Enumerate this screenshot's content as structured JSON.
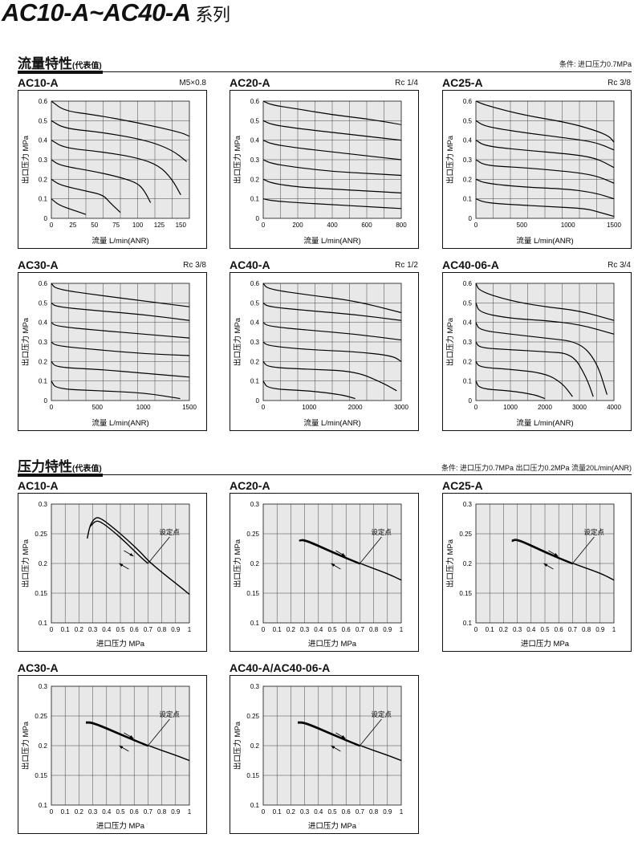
{
  "header": {
    "model_range": "AC10-A~AC40-A",
    "series_suffix": "系列"
  },
  "flow_section": {
    "title": "流量特性",
    "note": "(代表值)",
    "condition": "条件: 进口压力0.7MPa"
  },
  "pressure_section": {
    "title": "压力特性",
    "note": "(代表值)",
    "condition": "条件: 进口压力0.7MPa  出口压力0.2MPa  流量20L/min(ANR)"
  },
  "chart_data": [
    {
      "id": "flow-ac10",
      "type": "line",
      "title": "AC10-A",
      "port": "M5×0.8",
      "xlabel": "流量 L/min(ANR)",
      "ylabel": "出口压力 MPa",
      "xlim": [
        0,
        160
      ],
      "ylim": [
        0,
        0.6
      ],
      "xticks": [
        0,
        25,
        50,
        75,
        100,
        125,
        150
      ],
      "yticks": [
        0,
        0.1,
        0.2,
        0.3,
        0.4,
        0.5,
        0.6
      ],
      "series": [
        {
          "x": [
            0,
            8,
            20,
            40
          ],
          "y": [
            0.1,
            0.07,
            0.05,
            0.02
          ]
        },
        {
          "x": [
            0,
            10,
            40,
            60,
            68,
            80
          ],
          "y": [
            0.2,
            0.17,
            0.14,
            0.12,
            0.08,
            0.03
          ]
        },
        {
          "x": [
            0,
            10,
            50,
            80,
            100,
            108,
            115
          ],
          "y": [
            0.3,
            0.27,
            0.24,
            0.21,
            0.18,
            0.14,
            0.08
          ]
        },
        {
          "x": [
            0,
            15,
            60,
            100,
            125,
            140,
            150
          ],
          "y": [
            0.4,
            0.36,
            0.34,
            0.31,
            0.27,
            0.2,
            0.12
          ]
        },
        {
          "x": [
            0,
            15,
            60,
            110,
            140,
            157
          ],
          "y": [
            0.5,
            0.46,
            0.44,
            0.4,
            0.35,
            0.29
          ]
        },
        {
          "x": [
            0,
            15,
            50,
            100,
            150,
            160
          ],
          "y": [
            0.6,
            0.55,
            0.53,
            0.49,
            0.44,
            0.42
          ]
        }
      ]
    },
    {
      "id": "flow-ac20",
      "type": "line",
      "title": "AC20-A",
      "port": "Rc 1/4",
      "xlabel": "流量 L/min(ANR)",
      "ylabel": "出口压力 MPa",
      "xlim": [
        0,
        800
      ],
      "ylim": [
        0,
        0.6
      ],
      "xticks": [
        0,
        200,
        400,
        600,
        800
      ],
      "yticks": [
        0,
        0.1,
        0.2,
        0.3,
        0.4,
        0.5,
        0.6
      ],
      "series": [
        {
          "x": [
            0,
            50,
            200,
            400,
            600,
            800
          ],
          "y": [
            0.1,
            0.09,
            0.08,
            0.07,
            0.06,
            0.05
          ]
        },
        {
          "x": [
            0,
            50,
            200,
            400,
            600,
            800
          ],
          "y": [
            0.2,
            0.18,
            0.16,
            0.15,
            0.14,
            0.13
          ]
        },
        {
          "x": [
            0,
            50,
            200,
            400,
            600,
            800
          ],
          "y": [
            0.3,
            0.28,
            0.26,
            0.24,
            0.23,
            0.22
          ]
        },
        {
          "x": [
            0,
            50,
            200,
            400,
            600,
            800
          ],
          "y": [
            0.4,
            0.38,
            0.36,
            0.34,
            0.32,
            0.3
          ]
        },
        {
          "x": [
            0,
            50,
            200,
            400,
            600,
            800
          ],
          "y": [
            0.5,
            0.48,
            0.46,
            0.44,
            0.42,
            0.4
          ]
        },
        {
          "x": [
            0,
            50,
            200,
            400,
            600,
            800
          ],
          "y": [
            0.6,
            0.58,
            0.56,
            0.53,
            0.51,
            0.48
          ]
        }
      ]
    },
    {
      "id": "flow-ac25",
      "type": "line",
      "title": "AC25-A",
      "port": "Rc 3/8",
      "xlabel": "流量 L/min(ANR)",
      "ylabel": "出口压力 MPa",
      "xlim": [
        0,
        1500
      ],
      "ylim": [
        0,
        0.6
      ],
      "xticks": [
        0,
        500,
        1000,
        1500
      ],
      "yticks": [
        0,
        0.1,
        0.2,
        0.3,
        0.4,
        0.5,
        0.6
      ],
      "series": [
        {
          "x": [
            0,
            100,
            400,
            800,
            1200,
            1350,
            1500
          ],
          "y": [
            0.1,
            0.08,
            0.07,
            0.06,
            0.05,
            0.03,
            0.01
          ]
        },
        {
          "x": [
            0,
            100,
            500,
            1000,
            1300,
            1500
          ],
          "y": [
            0.2,
            0.18,
            0.16,
            0.15,
            0.13,
            0.1
          ]
        },
        {
          "x": [
            0,
            100,
            500,
            1000,
            1300,
            1500
          ],
          "y": [
            0.3,
            0.27,
            0.26,
            0.24,
            0.22,
            0.18
          ]
        },
        {
          "x": [
            0,
            100,
            500,
            1000,
            1300,
            1500
          ],
          "y": [
            0.4,
            0.37,
            0.35,
            0.33,
            0.31,
            0.26
          ]
        },
        {
          "x": [
            0,
            100,
            500,
            1000,
            1300,
            1500
          ],
          "y": [
            0.5,
            0.47,
            0.44,
            0.41,
            0.39,
            0.35
          ]
        },
        {
          "x": [
            0,
            100,
            500,
            1000,
            1300,
            1450,
            1500
          ],
          "y": [
            0.6,
            0.58,
            0.53,
            0.49,
            0.45,
            0.42,
            0.39
          ]
        }
      ]
    },
    {
      "id": "flow-ac30",
      "type": "line",
      "title": "AC30-A",
      "port": "Rc 3/8",
      "xlabel": "流量 L/min(ANR)",
      "ylabel": "出口压力 MPa",
      "xlim": [
        0,
        1500
      ],
      "ylim": [
        0,
        0.6
      ],
      "xticks": [
        0,
        500,
        1000,
        1500
      ],
      "yticks": [
        0,
        0.1,
        0.2,
        0.3,
        0.4,
        0.5,
        0.6
      ],
      "series": [
        {
          "x": [
            0,
            50,
            500,
            1000,
            1400
          ],
          "y": [
            0.1,
            0.06,
            0.05,
            0.04,
            0.01
          ]
        },
        {
          "x": [
            0,
            50,
            500,
            1000,
            1500
          ],
          "y": [
            0.2,
            0.17,
            0.16,
            0.14,
            0.12
          ]
        },
        {
          "x": [
            0,
            50,
            500,
            1000,
            1500
          ],
          "y": [
            0.3,
            0.28,
            0.26,
            0.24,
            0.23
          ]
        },
        {
          "x": [
            0,
            50,
            500,
            1000,
            1500
          ],
          "y": [
            0.4,
            0.38,
            0.36,
            0.34,
            0.32
          ]
        },
        {
          "x": [
            0,
            50,
            500,
            1000,
            1500
          ],
          "y": [
            0.5,
            0.48,
            0.46,
            0.44,
            0.41
          ]
        },
        {
          "x": [
            0,
            50,
            500,
            1000,
            1500
          ],
          "y": [
            0.6,
            0.57,
            0.54,
            0.51,
            0.48
          ]
        }
      ]
    },
    {
      "id": "flow-ac40",
      "type": "line",
      "title": "AC40-A",
      "port": "Rc 1/2",
      "xlabel": "流量 L/min(ANR)",
      "ylabel": "出口压力 MPa",
      "xlim": [
        0,
        3000
      ],
      "ylim": [
        0,
        0.6
      ],
      "xticks": [
        0,
        1000,
        2000,
        3000
      ],
      "yticks": [
        0,
        0.1,
        0.2,
        0.3,
        0.4,
        0.5,
        0.6
      ],
      "series": [
        {
          "x": [
            0,
            100,
            1000,
            1700,
            2000
          ],
          "y": [
            0.1,
            0.06,
            0.05,
            0.03,
            0.01
          ]
        },
        {
          "x": [
            0,
            100,
            1000,
            2000,
            2600,
            2900
          ],
          "y": [
            0.2,
            0.17,
            0.16,
            0.15,
            0.09,
            0.05
          ]
        },
        {
          "x": [
            0,
            100,
            1000,
            2000,
            2800,
            3000
          ],
          "y": [
            0.3,
            0.28,
            0.26,
            0.25,
            0.23,
            0.2
          ]
        },
        {
          "x": [
            0,
            100,
            1000,
            2000,
            3000
          ],
          "y": [
            0.4,
            0.38,
            0.36,
            0.34,
            0.31
          ]
        },
        {
          "x": [
            0,
            100,
            1000,
            2000,
            3000
          ],
          "y": [
            0.5,
            0.48,
            0.46,
            0.44,
            0.41
          ]
        },
        {
          "x": [
            0,
            100,
            1000,
            2000,
            3000
          ],
          "y": [
            0.6,
            0.57,
            0.54,
            0.51,
            0.45
          ]
        }
      ]
    },
    {
      "id": "flow-ac40-06",
      "type": "line",
      "title": "AC40-06-A",
      "port": "Rc 3/4",
      "xlabel": "流量 L/min(ANR)",
      "ylabel": "出口压力 MPa",
      "xlim": [
        0,
        4000
      ],
      "ylim": [
        0,
        0.6
      ],
      "xticks": [
        0,
        1000,
        2000,
        3000,
        4000
      ],
      "yticks": [
        0,
        0.1,
        0.2,
        0.3,
        0.4,
        0.5,
        0.6
      ],
      "series": [
        {
          "x": [
            0,
            100,
            1000,
            1700,
            2000
          ],
          "y": [
            0.1,
            0.06,
            0.05,
            0.03,
            0.01
          ]
        },
        {
          "x": [
            0,
            100,
            1000,
            2000,
            2500,
            2800
          ],
          "y": [
            0.2,
            0.17,
            0.16,
            0.14,
            0.09,
            0.02
          ]
        },
        {
          "x": [
            0,
            100,
            1000,
            2000,
            2800,
            3200,
            3400
          ],
          "y": [
            0.3,
            0.27,
            0.26,
            0.25,
            0.24,
            0.12,
            0.02
          ]
        },
        {
          "x": [
            0,
            100,
            1000,
            2000,
            3000,
            3500,
            3800
          ],
          "y": [
            0.4,
            0.36,
            0.34,
            0.32,
            0.3,
            0.2,
            0.03
          ]
        },
        {
          "x": [
            0,
            100,
            1000,
            2000,
            3000,
            4000
          ],
          "y": [
            0.5,
            0.45,
            0.42,
            0.41,
            0.39,
            0.34
          ]
        },
        {
          "x": [
            0,
            100,
            1000,
            2000,
            3000,
            4000
          ],
          "y": [
            0.6,
            0.56,
            0.51,
            0.48,
            0.46,
            0.41
          ]
        }
      ]
    },
    {
      "id": "pres-ac10",
      "type": "line",
      "title": "AC10-A",
      "xlabel": "进口压力 MPa",
      "ylabel": "出口压力 MPa",
      "xlim": [
        0,
        1
      ],
      "ylim": [
        0.1,
        0.3
      ],
      "xticks": [
        0,
        0.1,
        0.2,
        0.3,
        0.4,
        0.5,
        0.6,
        0.7,
        0.8,
        0.9,
        1
      ],
      "yticks": [
        0.1,
        0.15,
        0.2,
        0.25,
        0.3
      ],
      "annotation": "设定点",
      "series": [
        {
          "x": [
            0.26,
            0.28,
            0.32,
            0.36,
            0.45,
            0.55,
            0.65,
            0.7,
            0.8,
            0.9,
            1.0
          ],
          "y": [
            0.242,
            0.265,
            0.278,
            0.276,
            0.26,
            0.24,
            0.218,
            0.205,
            0.185,
            0.167,
            0.148
          ]
        },
        {
          "x": [
            0.28,
            0.32,
            0.36,
            0.45,
            0.55,
            0.65,
            0.7
          ],
          "y": [
            0.262,
            0.272,
            0.27,
            0.254,
            0.233,
            0.21,
            0.2
          ]
        }
      ]
    },
    {
      "id": "pres-ac20",
      "type": "line",
      "title": "AC20-A",
      "xlabel": "进口压力 MPa",
      "ylabel": "出口压力 MPa",
      "xlim": [
        0,
        1
      ],
      "ylim": [
        0.1,
        0.3
      ],
      "xticks": [
        0,
        0.1,
        0.2,
        0.3,
        0.4,
        0.5,
        0.6,
        0.7,
        0.8,
        0.9,
        1
      ],
      "yticks": [
        0.1,
        0.15,
        0.2,
        0.25,
        0.3
      ],
      "annotation": "设定点",
      "series": [
        {
          "x": [
            0.26,
            0.3,
            0.5,
            0.7,
            0.9,
            1.0
          ],
          "y": [
            0.239,
            0.241,
            0.22,
            0.2,
            0.183,
            0.172
          ]
        },
        {
          "x": [
            0.26,
            0.3,
            0.5,
            0.7
          ],
          "y": [
            0.238,
            0.239,
            0.218,
            0.199
          ]
        }
      ]
    },
    {
      "id": "pres-ac25",
      "type": "line",
      "title": "AC25-A",
      "xlabel": "进口压力 MPa",
      "ylabel": "出口压力 MPa",
      "xlim": [
        0,
        1
      ],
      "ylim": [
        0.1,
        0.3
      ],
      "xticks": [
        0,
        0.1,
        0.2,
        0.3,
        0.4,
        0.5,
        0.6,
        0.7,
        0.8,
        0.9,
        1
      ],
      "yticks": [
        0.1,
        0.15,
        0.2,
        0.25,
        0.3
      ],
      "annotation": "设定点",
      "series": [
        {
          "x": [
            0.26,
            0.3,
            0.5,
            0.7,
            0.9,
            1.0
          ],
          "y": [
            0.239,
            0.242,
            0.22,
            0.2,
            0.184,
            0.172
          ]
        },
        {
          "x": [
            0.26,
            0.3,
            0.5,
            0.7
          ],
          "y": [
            0.237,
            0.24,
            0.218,
            0.199
          ]
        }
      ]
    },
    {
      "id": "pres-ac30",
      "type": "line",
      "title": "AC30-A",
      "xlabel": "进口压力 MPa",
      "ylabel": "出口压力 MPa",
      "xlim": [
        0,
        1
      ],
      "ylim": [
        0.1,
        0.3
      ],
      "xticks": [
        0,
        0.1,
        0.2,
        0.3,
        0.4,
        0.5,
        0.6,
        0.7,
        0.8,
        0.9,
        1
      ],
      "yticks": [
        0.1,
        0.15,
        0.2,
        0.25,
        0.3
      ],
      "annotation": "设定点",
      "series": [
        {
          "x": [
            0.25,
            0.3,
            0.5,
            0.7,
            0.9,
            1.0
          ],
          "y": [
            0.24,
            0.24,
            0.22,
            0.2,
            0.184,
            0.175
          ]
        },
        {
          "x": [
            0.25,
            0.3,
            0.5,
            0.7
          ],
          "y": [
            0.238,
            0.238,
            0.218,
            0.199
          ]
        }
      ]
    },
    {
      "id": "pres-ac40",
      "type": "line",
      "title": "AC40-A/AC40-06-A",
      "xlabel": "进口压力 MPa",
      "ylabel": "出口压力 MPa",
      "xlim": [
        0,
        1
      ],
      "ylim": [
        0.1,
        0.3
      ],
      "xticks": [
        0,
        0.1,
        0.2,
        0.3,
        0.4,
        0.5,
        0.6,
        0.7,
        0.8,
        0.9,
        1
      ],
      "yticks": [
        0.1,
        0.15,
        0.2,
        0.25,
        0.3
      ],
      "annotation": "设定点",
      "series": [
        {
          "x": [
            0.25,
            0.3,
            0.5,
            0.7,
            0.9,
            1.0
          ],
          "y": [
            0.24,
            0.24,
            0.22,
            0.2,
            0.184,
            0.175
          ]
        },
        {
          "x": [
            0.25,
            0.3,
            0.5,
            0.7
          ],
          "y": [
            0.238,
            0.238,
            0.218,
            0.199
          ]
        }
      ]
    }
  ]
}
